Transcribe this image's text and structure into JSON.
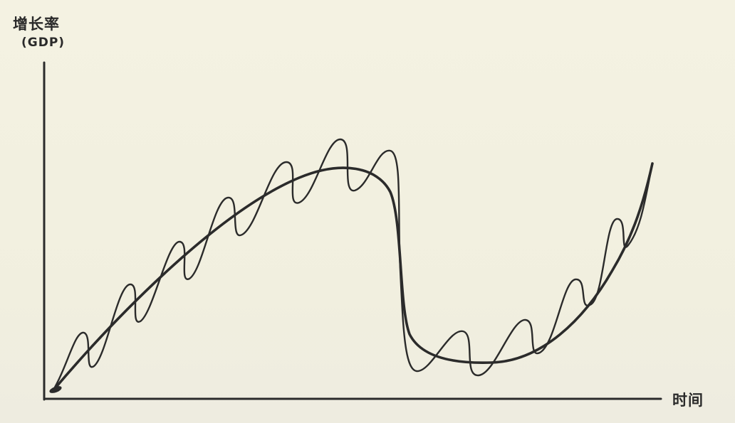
{
  "axes": {
    "y_label": "增长率",
    "y_label_unit": "(GDP)",
    "x_label": "时间"
  },
  "curves": {
    "trend_description_hidden": "",
    "stroke_color": "#2b2b2b"
  }
}
